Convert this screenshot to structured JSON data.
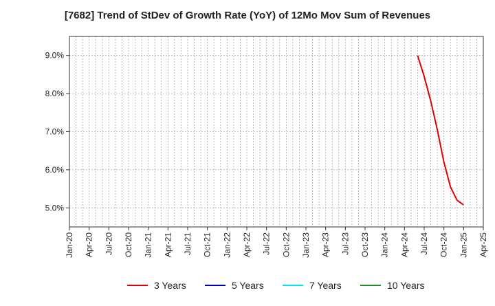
{
  "chart_data": {
    "type": "line",
    "title": "[7682]  Trend of StDev of Growth Rate (YoY) of 12Mo Mov Sum of Revenues",
    "xlabel": "",
    "ylabel": "",
    "x_tick_labels": [
      "Jan-20",
      "Apr-20",
      "Jul-20",
      "Oct-20",
      "Jan-21",
      "Apr-21",
      "Jul-21",
      "Oct-21",
      "Jan-22",
      "Apr-22",
      "Jul-22",
      "Oct-22",
      "Jan-23",
      "Apr-23",
      "Jul-23",
      "Oct-23",
      "Jan-24",
      "Apr-24",
      "Jul-24",
      "Oct-24",
      "Jan-25",
      "Apr-25"
    ],
    "y_tick_labels": [
      "5.0%",
      "6.0%",
      "7.0%",
      "8.0%",
      "9.0%"
    ],
    "y_ticks": [
      5.0,
      6.0,
      7.0,
      8.0,
      9.0
    ],
    "ylim": [
      4.5,
      9.5
    ],
    "xlim": [
      "2020-01",
      "2025-04"
    ],
    "grid": true,
    "legend_position": "bottom",
    "series": [
      {
        "name": "3 Years",
        "color": "#dd0000",
        "points": [
          {
            "x": "2024-06",
            "y": 9.0
          },
          {
            "x": "2024-07",
            "y": 8.45
          },
          {
            "x": "2024-08",
            "y": 7.8
          },
          {
            "x": "2024-09",
            "y": 7.05
          },
          {
            "x": "2024-10",
            "y": 6.2
          },
          {
            "x": "2024-11",
            "y": 5.55
          },
          {
            "x": "2024-12",
            "y": 5.2
          },
          {
            "x": "2025-01",
            "y": 5.08
          }
        ]
      },
      {
        "name": "5 Years",
        "color": "#0000cc",
        "points": []
      },
      {
        "name": "7 Years",
        "color": "#00e5ee",
        "points": []
      },
      {
        "name": "10 Years",
        "color": "#228b22",
        "points": []
      }
    ]
  }
}
